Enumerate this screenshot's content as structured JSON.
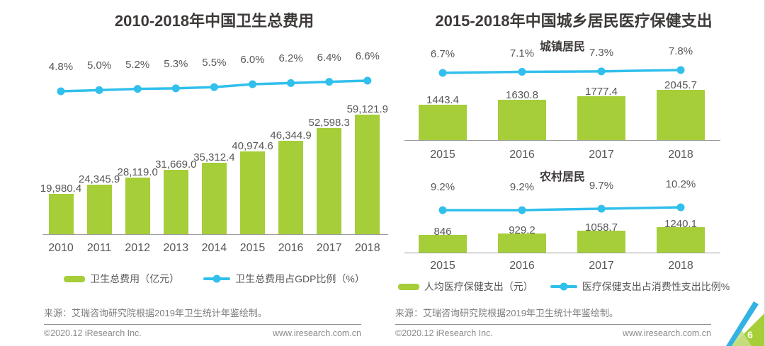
{
  "left_chart": {
    "title": "2010-2018年中国卫生总费用"
  },
  "right_chart": {
    "title": "2015-2018年中国城乡居民医疗保健支出",
    "urban_subtitle": "城镇居民",
    "rural_subtitle": "农村居民"
  },
  "footer": {
    "source": "来源：艾瑞咨询研究院根据2019年卫生统计年鉴绘制。",
    "copyright": "©2020.12 iResearch Inc.",
    "website": "www.iresearch.com.cn",
    "page_number": "6"
  },
  "colors": {
    "bar_green": "#a5ce39",
    "line_cyan": "#31bfec",
    "title_text": "#3e3a39",
    "label_text": "#595757",
    "axis_gray": "#9c9c9c",
    "footer_gray": "#8a8a8a",
    "corner_blue": "#33b2e4",
    "corner_green": "#a5ce39",
    "corner_light_green": "#c8df84"
  },
  "chart_data": [
    {
      "id": "left",
      "type": "bar+line",
      "title": "2010-2018年中国卫生总费用",
      "categories": [
        "2010",
        "2011",
        "2012",
        "2013",
        "2014",
        "2015",
        "2016",
        "2017",
        "2018"
      ],
      "series": [
        {
          "name": "卫生总费用（亿元）",
          "type": "bar",
          "color": "#a5ce39",
          "values": [
            19980.4,
            24345.9,
            28119.0,
            31669.0,
            35312.4,
            40974.6,
            46344.9,
            52598.3,
            59121.9
          ],
          "labels": [
            "19,980.4",
            "24,345.9",
            "28,119.0",
            "31,669.0",
            "35,312.4",
            "40,974.6",
            "46,344.9",
            "52,598.3",
            "59,121.9"
          ]
        },
        {
          "name": "卫生总费用占GDP比例（%）",
          "type": "line",
          "color": "#31bfec",
          "values": [
            4.8,
            5.0,
            5.2,
            5.3,
            5.5,
            6.0,
            6.2,
            6.4,
            6.6
          ],
          "labels": [
            "4.8%",
            "5.0%",
            "5.2%",
            "5.3%",
            "5.5%",
            "6.0%",
            "6.2%",
            "6.4%",
            "6.6%"
          ]
        }
      ],
      "legend_position": "bottom",
      "gridlines": false,
      "value_axis_hidden": true
    },
    {
      "id": "urban",
      "type": "bar+line",
      "subtitle": "城镇居民",
      "categories": [
        "2015",
        "2016",
        "2017",
        "2018"
      ],
      "series": [
        {
          "name": "人均医疗保健支出（元）",
          "type": "bar",
          "color": "#a5ce39",
          "values": [
            1443.4,
            1630.8,
            1777.4,
            2045.7
          ],
          "labels": [
            "1443.4",
            "1630.8",
            "1777.4",
            "2045.7"
          ]
        },
        {
          "name": "医疗保健支出占消费性支出比例%",
          "type": "line",
          "color": "#31bfec",
          "values": [
            6.7,
            7.1,
            7.3,
            7.8
          ],
          "labels": [
            "6.7%",
            "7.1%",
            "7.3%",
            "7.8%"
          ]
        }
      ],
      "legend_position": "bottom",
      "gridlines": false,
      "value_axis_hidden": true
    },
    {
      "id": "rural",
      "type": "bar+line",
      "subtitle": "农村居民",
      "categories": [
        "2015",
        "2016",
        "2017",
        "2018"
      ],
      "series": [
        {
          "name": "人均医疗保健支出（元）",
          "type": "bar",
          "color": "#a5ce39",
          "values": [
            846,
            929.2,
            1058.7,
            1240.1
          ],
          "labels": [
            "846",
            "929.2",
            "1058.7",
            "1240.1"
          ]
        },
        {
          "name": "医疗保健支出占消费性支出比例%",
          "type": "line",
          "color": "#31bfec",
          "values": [
            9.2,
            9.2,
            9.7,
            10.2
          ],
          "labels": [
            "9.2%",
            "9.2%",
            "9.7%",
            "10.2%"
          ]
        }
      ],
      "legend_position": "bottom",
      "gridlines": false,
      "value_axis_hidden": true
    }
  ]
}
